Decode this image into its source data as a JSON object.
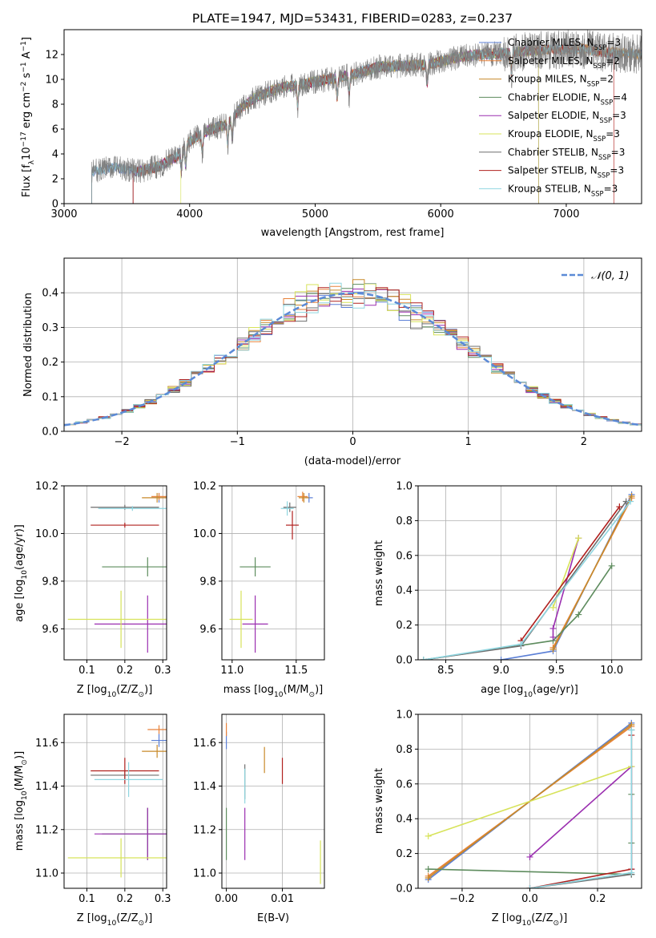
{
  "figure_title": "PLATE=1947, MJD=53431, FIBERID=0283, z=0.237",
  "model_colors": [
    "#5b7fd6",
    "#e8823a",
    "#c88a2a",
    "#5e8c5e",
    "#9b2fb0",
    "#d7e35a",
    "#6e6e6e",
    "#b0201e",
    "#8fd6e0"
  ],
  "model_labels": [
    [
      "Chabrier MILES, N",
      "SSP",
      "=3"
    ],
    [
      "Salpeter MILES, N",
      "SSP",
      "=2"
    ],
    [
      "Kroupa MILES, N",
      "SSP",
      "=2"
    ],
    [
      "Chabrier ELODIE, N",
      "SSP",
      "=4"
    ],
    [
      "Salpeter ELODIE, N",
      "SSP",
      "=3"
    ],
    [
      "Kroupa ELODIE, N",
      "SSP",
      "=3"
    ],
    [
      "Chabrier STELIB, N",
      "SSP",
      "=3"
    ],
    [
      "Salpeter STELIB, N",
      "SSP",
      "=3"
    ],
    [
      "Kroupa STELIB, N",
      "SSP",
      "=3"
    ]
  ],
  "chart_data": [
    {
      "id": "spectrum",
      "type": "line",
      "xlabel": "wavelength [Angstrom, rest frame]",
      "ylabel_parts": [
        "Flux [f",
        "λ",
        "10",
        "−17",
        " erg cm",
        "−2",
        " s",
        "−1",
        " A",
        "−1",
        "]"
      ],
      "xlim": [
        3000,
        7600
      ],
      "ylim": [
        0,
        14
      ],
      "xticks": [
        3000,
        4000,
        5000,
        6000,
        7000
      ],
      "yticks": [
        0,
        2,
        4,
        6,
        8,
        10,
        12
      ],
      "grid": false,
      "legend": "top-right",
      "continuum": [
        [
          3220,
          2.6
        ],
        [
          3400,
          2.9
        ],
        [
          3600,
          2.6
        ],
        [
          3750,
          3.0
        ],
        [
          3900,
          3.8
        ],
        [
          4000,
          5.0
        ],
        [
          4150,
          5.9
        ],
        [
          4300,
          6.4
        ],
        [
          4400,
          7.6
        ],
        [
          4500,
          8.4
        ],
        [
          4700,
          9.3
        ],
        [
          4900,
          9.6
        ],
        [
          5100,
          10.0
        ],
        [
          5300,
          10.4
        ],
        [
          5500,
          11.0
        ],
        [
          5700,
          11.1
        ],
        [
          5900,
          11.2
        ],
        [
          6100,
          11.7
        ],
        [
          6300,
          12.0
        ],
        [
          6500,
          12.1
        ],
        [
          6700,
          12.3
        ],
        [
          6900,
          12.4
        ],
        [
          7100,
          12.5
        ],
        [
          7300,
          12.2
        ],
        [
          7600,
          12.0
        ]
      ],
      "model_starts": [
        3220,
        3550,
        3550,
        3550,
        3550,
        3930,
        3220,
        3550,
        3220
      ],
      "model_ends": [
        7600,
        7600,
        7600,
        6780,
        6780,
        6780,
        7600,
        7380,
        7600
      ]
    },
    {
      "id": "residuals",
      "type": "histogram",
      "xlabel": "(data-model)/error",
      "ylabel": "Normed distribution",
      "xlim": [
        -2.5,
        2.5
      ],
      "ylim": [
        0,
        0.5
      ],
      "xticks": [
        -2,
        -1,
        0,
        1,
        2
      ],
      "ytick_labels": [
        "0.0",
        "0.1",
        "0.2",
        "0.3",
        "0.4"
      ],
      "yticks": [
        0,
        0.1,
        0.2,
        0.3,
        0.4
      ],
      "grid": true,
      "legend": "top-right",
      "legend_label": "𝒩(0, 1)",
      "bin_width": 0.1
    },
    {
      "id": "age_vs_Z",
      "type": "scatter-errorbar",
      "xlabel_parts": [
        "Z [log",
        "10",
        "(Z/Z",
        "⊙",
        ")]"
      ],
      "ylabel_parts": [
        "age  [log",
        "10",
        "(age/yr)]"
      ],
      "xlim": [
        0.04,
        0.31
      ],
      "ylim": [
        9.47,
        10.2
      ],
      "xticks": [
        0.1,
        0.2,
        0.3
      ],
      "xtick_labels": [
        "0.1",
        "0.2",
        "0.3"
      ],
      "yticks": [
        9.6,
        9.8,
        10.0,
        10.2
      ],
      "ytick_labels": [
        "9.6",
        "9.8",
        "10.0",
        "10.2"
      ],
      "grid": true,
      "points": [
        {
          "model": 0,
          "x": 0.29,
          "y": 10.15,
          "xerr": 0.02,
          "yerr": 0.02
        },
        {
          "model": 1,
          "x": 0.29,
          "y": 10.155,
          "xerr": 0.02,
          "yerr": 0.015
        },
        {
          "model": 2,
          "x": 0.285,
          "y": 10.15,
          "xerr": 0.04,
          "yerr": 0.02
        },
        {
          "model": 3,
          "x": 0.26,
          "y": 9.86,
          "xerr": 0.12,
          "yerr": 0.04
        },
        {
          "model": 4,
          "x": 0.26,
          "y": 9.62,
          "xerr": 0.14,
          "yerr": 0.12
        },
        {
          "model": 5,
          "x": 0.19,
          "y": 9.64,
          "xerr": 0.14,
          "yerr": 0.12
        },
        {
          "model": 6,
          "x": 0.2,
          "y": 10.11,
          "xerr": 0.09,
          "yerr": 0.01
        },
        {
          "model": 7,
          "x": 0.2,
          "y": 10.035,
          "xerr": 0.09,
          "yerr": 0.01
        },
        {
          "model": 8,
          "x": 0.22,
          "y": 10.105,
          "xerr": 0.09,
          "yerr": 0.01
        }
      ]
    },
    {
      "id": "age_vs_mass",
      "type": "scatter-errorbar",
      "xlabel_parts": [
        "mass [log",
        "10",
        "(M/M",
        "⊙",
        ")]"
      ],
      "ylabel_parts": [],
      "xlim": [
        10.92,
        11.72
      ],
      "ylim": [
        9.47,
        10.2
      ],
      "xticks": [
        11.0,
        11.5
      ],
      "xtick_labels": [
        "11.0",
        "11.5"
      ],
      "yticks": [
        9.6,
        9.8,
        10.0,
        10.2
      ],
      "ytick_labels": [
        "9.6",
        "9.8",
        "10.0",
        "10.2"
      ],
      "grid": true,
      "points": [
        {
          "model": 0,
          "x": 11.6,
          "y": 10.15,
          "xerr": 0.03,
          "yerr": 0.02
        },
        {
          "model": 1,
          "x": 11.55,
          "y": 10.155,
          "xerr": 0.04,
          "yerr": 0.02
        },
        {
          "model": 2,
          "x": 11.56,
          "y": 10.15,
          "xerr": 0.04,
          "yerr": 0.02
        },
        {
          "model": 3,
          "x": 11.18,
          "y": 9.86,
          "xerr": 0.12,
          "yerr": 0.04
        },
        {
          "model": 4,
          "x": 11.18,
          "y": 9.62,
          "xerr": 0.1,
          "yerr": 0.12
        },
        {
          "model": 5,
          "x": 11.07,
          "y": 9.64,
          "xerr": 0.09,
          "yerr": 0.12
        },
        {
          "model": 6,
          "x": 11.45,
          "y": 10.11,
          "xerr": 0.05,
          "yerr": 0.02
        },
        {
          "model": 7,
          "x": 11.47,
          "y": 10.035,
          "xerr": 0.05,
          "yerr": 0.06
        },
        {
          "model": 8,
          "x": 11.43,
          "y": 10.105,
          "xerr": 0.05,
          "yerr": 0.03
        }
      ]
    },
    {
      "id": "weight_vs_age",
      "type": "line",
      "xlabel_parts": [
        "age  [log",
        "10",
        "(age/yr)]"
      ],
      "ylabel_parts": [
        "mass weight"
      ],
      "xlim": [
        8.25,
        10.27
      ],
      "ylim": [
        0,
        1
      ],
      "xticks": [
        8.5,
        9.0,
        9.5,
        10.0
      ],
      "xtick_labels": [
        "8.5",
        "9.0",
        "9.5",
        "10.0"
      ],
      "yticks": [
        0,
        0.2,
        0.4,
        0.6,
        0.8,
        1.0
      ],
      "ytick_labels": [
        "0.0",
        "0.2",
        "0.4",
        "0.6",
        "0.8",
        "1.0"
      ],
      "grid": true,
      "series": [
        {
          "model": 0,
          "points": [
            [
              9.0,
              0.0
            ],
            [
              9.47,
              0.05
            ],
            [
              10.18,
              0.95
            ]
          ]
        },
        {
          "model": 1,
          "points": [
            [
              9.47,
              0.07
            ],
            [
              10.18,
              0.93
            ]
          ]
        },
        {
          "model": 2,
          "points": [
            [
              9.47,
              0.06
            ],
            [
              10.18,
              0.94
            ]
          ]
        },
        {
          "model": 3,
          "points": [
            [
              8.3,
              0.0
            ],
            [
              9.47,
              0.11
            ],
            [
              9.7,
              0.26
            ],
            [
              10.0,
              0.54
            ]
          ]
        },
        {
          "model": 4,
          "points": [
            [
              9.47,
              0.13
            ],
            [
              9.47,
              0.18
            ],
            [
              9.7,
              0.7
            ]
          ]
        },
        {
          "model": 5,
          "points": [
            [
              9.47,
              0.3
            ],
            [
              9.7,
              0.7
            ]
          ]
        },
        {
          "model": 6,
          "points": [
            [
              8.3,
              0.0
            ],
            [
              9.18,
              0.08
            ],
            [
              10.13,
              0.91
            ]
          ]
        },
        {
          "model": 7,
          "points": [
            [
              9.18,
              0.11
            ],
            [
              10.07,
              0.88
            ]
          ]
        },
        {
          "model": 8,
          "points": [
            [
              8.3,
              0.0
            ],
            [
              9.18,
              0.09
            ],
            [
              10.17,
              0.91
            ]
          ]
        }
      ]
    },
    {
      "id": "mass_vs_Z",
      "type": "scatter-errorbar",
      "xlabel_parts": [
        "Z [log",
        "10",
        "(Z/Z",
        "⊙",
        ")]"
      ],
      "ylabel_parts": [
        "mass [log",
        "10",
        "(M/M",
        "⊙",
        ")]"
      ],
      "xlim": [
        0.04,
        0.31
      ],
      "ylim": [
        10.93,
        11.73
      ],
      "xticks": [
        0.1,
        0.2,
        0.3
      ],
      "xtick_labels": [
        "0.1",
        "0.2",
        "0.3"
      ],
      "yticks": [
        11.0,
        11.2,
        11.4,
        11.6
      ],
      "ytick_labels": [
        "11.0",
        "11.2",
        "11.4",
        "11.6"
      ],
      "grid": true,
      "points": [
        {
          "model": 0,
          "x": 0.29,
          "y": 11.61,
          "xerr": 0.02,
          "yerr": 0.03
        },
        {
          "model": 1,
          "x": 0.29,
          "y": 11.66,
          "xerr": 0.03,
          "yerr": 0.02
        },
        {
          "model": 2,
          "x": 0.285,
          "y": 11.56,
          "xerr": 0.04,
          "yerr": 0.03
        },
        {
          "model": 3,
          "x": 0.26,
          "y": 11.18,
          "xerr": 0.12,
          "yerr": 0.12
        },
        {
          "model": 4,
          "x": 0.26,
          "y": 11.18,
          "xerr": 0.14,
          "yerr": 0.12
        },
        {
          "model": 5,
          "x": 0.19,
          "y": 11.07,
          "xerr": 0.14,
          "yerr": 0.09
        },
        {
          "model": 6,
          "x": 0.2,
          "y": 11.45,
          "xerr": 0.09,
          "yerr": 0.02
        },
        {
          "model": 7,
          "x": 0.2,
          "y": 11.47,
          "xerr": 0.09,
          "yerr": 0.06
        },
        {
          "model": 8,
          "x": 0.21,
          "y": 11.43,
          "xerr": 0.09,
          "yerr": 0.08
        }
      ]
    },
    {
      "id": "mass_vs_EBV",
      "type": "scatter-errorbar",
      "xlabel_parts": [
        "E(B-V)"
      ],
      "ylabel_parts": [],
      "xlim": [
        -0.0008,
        0.0175
      ],
      "ylim": [
        10.93,
        11.73
      ],
      "xticks": [
        0.0,
        0.01
      ],
      "xtick_labels": [
        "0.00",
        "0.01"
      ],
      "yticks": [
        11.0,
        11.2,
        11.4,
        11.6
      ],
      "ytick_labels": [
        "11.0",
        "11.2",
        "11.4",
        "11.6"
      ],
      "grid": true,
      "points": [
        {
          "model": 0,
          "x": 0.0,
          "y": 11.61,
          "xerr": 0,
          "yerr": 0.04
        },
        {
          "model": 1,
          "x": 0.0,
          "y": 11.66,
          "xerr": 0,
          "yerr": 0.03
        },
        {
          "model": 2,
          "x": 0.0068,
          "y": 11.52,
          "xerr": 0,
          "yerr": 0.06
        },
        {
          "model": 3,
          "x": 0.0,
          "y": 11.18,
          "xerr": 0,
          "yerr": 0.12
        },
        {
          "model": 4,
          "x": 0.0033,
          "y": 11.18,
          "xerr": 0,
          "yerr": 0.12
        },
        {
          "model": 5,
          "x": 0.0168,
          "y": 11.05,
          "xerr": 0,
          "yerr": 0.1
        },
        {
          "model": 6,
          "x": 0.0033,
          "y": 11.42,
          "xerr": 0,
          "yerr": 0.08
        },
        {
          "model": 7,
          "x": 0.01,
          "y": 11.47,
          "xerr": 0,
          "yerr": 0.06
        },
        {
          "model": 8,
          "x": 0.0033,
          "y": 11.4,
          "xerr": 0,
          "yerr": 0.08
        }
      ]
    },
    {
      "id": "weight_vs_Z",
      "type": "line",
      "xlabel_parts": [
        "Z [log",
        "10",
        "(Z/Z",
        "⊙",
        ")]"
      ],
      "ylabel_parts": [
        "mass weight"
      ],
      "xlim": [
        -0.33,
        0.33
      ],
      "ylim": [
        0,
        1
      ],
      "xticks": [
        -0.2,
        0.0,
        0.2
      ],
      "xtick_labels": [
        "−0.2",
        "0.0",
        "0.2"
      ],
      "yticks": [
        0,
        0.2,
        0.4,
        0.6,
        0.8,
        1.0
      ],
      "ytick_labels": [
        "0.0",
        "0.2",
        "0.4",
        "0.6",
        "0.8",
        "1.0"
      ],
      "grid": true,
      "series": [
        {
          "model": 0,
          "points": [
            [
              -0.3,
              0.05
            ],
            [
              0.3,
              0.95
            ]
          ]
        },
        {
          "model": 1,
          "points": [
            [
              -0.3,
              0.07
            ],
            [
              0.3,
              0.93
            ]
          ]
        },
        {
          "model": 2,
          "points": [
            [
              -0.3,
              0.06
            ],
            [
              0.3,
              0.94
            ]
          ]
        },
        {
          "model": 3,
          "points": [
            [
              -0.3,
              0.11
            ],
            [
              0.3,
              0.08
            ],
            [
              0.3,
              0.26
            ],
            [
              0.3,
              0.54
            ]
          ]
        },
        {
          "model": 4,
          "points": [
            [
              0.0,
              0.18
            ],
            [
              0.3,
              0.7
            ],
            [
              0.3,
              0.11
            ]
          ]
        },
        {
          "model": 5,
          "points": [
            [
              -0.3,
              0.3
            ],
            [
              0.3,
              0.7
            ]
          ]
        },
        {
          "model": 6,
          "points": [
            [
              0.0,
              0.0
            ],
            [
              0.3,
              0.08
            ],
            [
              0.3,
              0.91
            ]
          ]
        },
        {
          "model": 7,
          "points": [
            [
              0.0,
              0.0
            ],
            [
              0.3,
              0.11
            ],
            [
              0.3,
              0.88
            ]
          ]
        },
        {
          "model": 8,
          "points": [
            [
              0.0,
              0.0
            ],
            [
              0.3,
              0.09
            ],
            [
              0.3,
              0.91
            ]
          ]
        }
      ]
    }
  ]
}
